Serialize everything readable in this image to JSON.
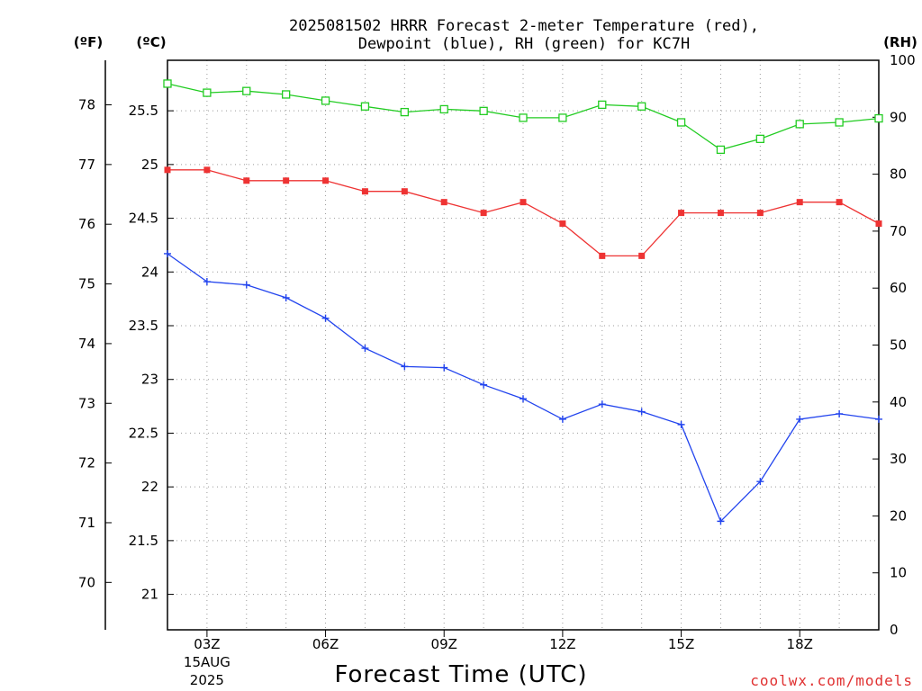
{
  "chart_data": {
    "type": "line",
    "title_lines": [
      "2025081502 HRRR Forecast 2-meter Temperature (red),",
      "Dewpoint (blue), RH (green) for KC7H"
    ],
    "xlabel": "Forecast Time (UTC)",
    "credit": "coolwx.com/models",
    "units": {
      "fahrenheit": "(ºF)",
      "celsius": "(ºC)",
      "rh": "(RH)"
    },
    "x_hours": [
      2,
      3,
      4,
      5,
      6,
      7,
      8,
      9,
      10,
      11,
      12,
      13,
      14,
      15,
      16,
      17,
      18,
      19,
      20
    ],
    "x_ticks": [
      {
        "hour": 3,
        "label": "03Z",
        "date": "15AUG",
        "year": "2025"
      },
      {
        "hour": 6,
        "label": "06Z"
      },
      {
        "hour": 9,
        "label": "09Z"
      },
      {
        "hour": 12,
        "label": "12Z"
      },
      {
        "hour": 15,
        "label": "15Z"
      },
      {
        "hour": 18,
        "label": "18Z"
      }
    ],
    "xlim": [
      2,
      20
    ],
    "celsius_axis": {
      "min": 20.67,
      "max": 25.97,
      "ticks": [
        "21",
        "21.5",
        "22",
        "22.5",
        "23",
        "23.5",
        "24",
        "24.5",
        "25",
        "25.5"
      ]
    },
    "fahrenheit_axis": {
      "ticks": [
        "70",
        "71",
        "72",
        "73",
        "74",
        "75",
        "76",
        "77",
        "78"
      ]
    },
    "rh_axis": {
      "min": 0,
      "max": 100,
      "ticks": [
        "0",
        "10",
        "20",
        "30",
        "40",
        "50",
        "60",
        "70",
        "80",
        "90",
        "100"
      ]
    },
    "series": [
      {
        "name": "Temperature",
        "axis": "celsius",
        "color": "#ee3333",
        "marker": "filled-square",
        "values": [
          24.95,
          24.95,
          24.85,
          24.85,
          24.85,
          24.75,
          24.75,
          24.65,
          24.55,
          24.65,
          24.45,
          24.15,
          24.15,
          24.55,
          24.55,
          24.55,
          24.65,
          24.65,
          24.45
        ]
      },
      {
        "name": "Dewpoint",
        "axis": "celsius",
        "color": "#2244ee",
        "marker": "plus",
        "values": [
          24.17,
          23.91,
          23.88,
          23.76,
          23.57,
          23.29,
          23.12,
          23.11,
          22.95,
          22.82,
          22.63,
          22.77,
          22.7,
          22.58,
          21.68,
          22.05,
          22.63,
          22.68,
          22.63
        ]
      },
      {
        "name": "RH",
        "axis": "rh",
        "color": "#22cc22",
        "marker": "open-square",
        "values": [
          95.9,
          94.3,
          94.6,
          94.0,
          92.9,
          91.9,
          90.9,
          91.4,
          91.1,
          89.9,
          89.9,
          92.2,
          91.9,
          89.1,
          84.3,
          86.2,
          88.8,
          89.1,
          89.8
        ]
      }
    ]
  }
}
